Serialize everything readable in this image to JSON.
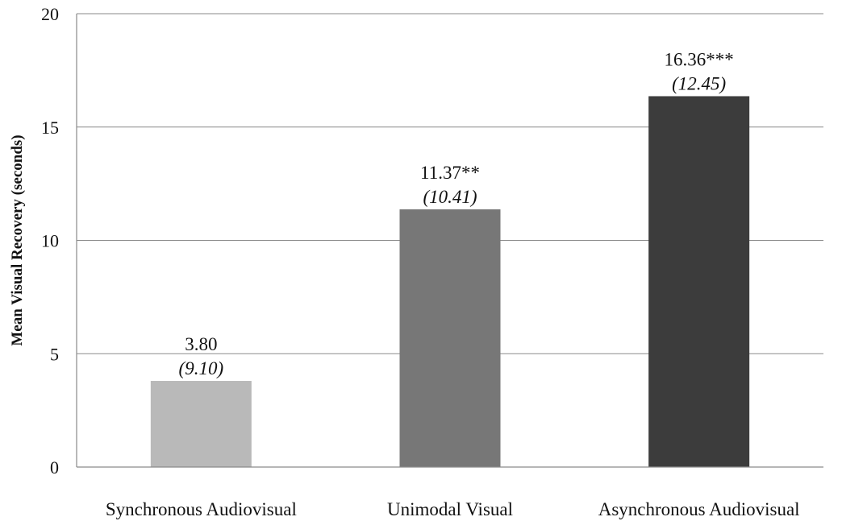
{
  "chart_data": {
    "type": "bar",
    "categories": [
      "Synchronous Audiovisual",
      "Unimodal Visual",
      "Asynchronous Audiovisual"
    ],
    "values": [
      3.8,
      11.37,
      16.36
    ],
    "value_labels": [
      "3.80",
      "11.37**",
      "16.36***"
    ],
    "sd_labels": [
      "(9.10)",
      "(10.41)",
      "(12.45)"
    ],
    "bar_colors": [
      "#b9b9b9",
      "#777777",
      "#3c3c3c"
    ],
    "title": "",
    "xlabel": "",
    "ylabel": "Mean Visual Recovery (seconds)",
    "ylim": [
      0,
      20
    ],
    "yticks": [
      0,
      5,
      10,
      15,
      20
    ],
    "grid": true,
    "legend": "none"
  }
}
